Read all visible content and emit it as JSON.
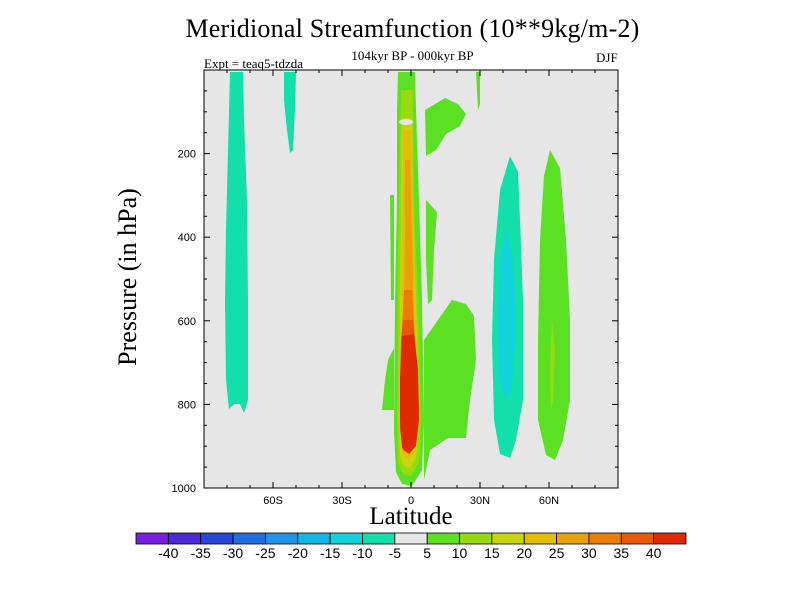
{
  "chart_data": {
    "type": "heatmap",
    "subtype": "filled-contour",
    "title": "Meridional Streamfunction (10**9kg/m-2)",
    "subtitle": "104kyr BP - 000kyr BP",
    "experiment": "Expt = teaq5-tdzda",
    "season": "DJF",
    "xlabel": "Latitude",
    "ylabel": "Pressure (in hPa)",
    "xlim": [
      -90,
      90
    ],
    "ylim": [
      1000,
      0
    ],
    "x_ticks": [
      {
        "value": -60,
        "label": "60S"
      },
      {
        "value": -30,
        "label": "30S"
      },
      {
        "value": 0,
        "label": "0"
      },
      {
        "value": 30,
        "label": "30N"
      },
      {
        "value": 60,
        "label": "60N"
      }
    ],
    "y_ticks": [
      {
        "value": 200,
        "label": "200"
      },
      {
        "value": 400,
        "label": "400"
      },
      {
        "value": 600,
        "label": "600"
      },
      {
        "value": 800,
        "label": "800"
      },
      {
        "value": 1000,
        "label": "1000"
      }
    ],
    "background_color": "#e6e6e6",
    "colorbar": {
      "levels": [
        "-40",
        "-35",
        "-30",
        "-25",
        "-20",
        "-15",
        "-10",
        "-5",
        "5",
        "10",
        "15",
        "20",
        "25",
        "30",
        "35",
        "40"
      ],
      "colors": [
        "#7a1fe0",
        "#4b2ad6",
        "#2946d8",
        "#1f6ee0",
        "#1f94e6",
        "#14b6e6",
        "#12d4d8",
        "#12e0a8",
        "#e6e6e6",
        "#5ce024",
        "#98da10",
        "#c8d40c",
        "#e2be08",
        "#eaa008",
        "#ec7e08",
        "#e85808",
        "#e02a04"
      ]
    },
    "regions": [
      {
        "value": -12,
        "lat": [
          -80,
          -73
        ],
        "p": [
          0,
          820
        ],
        "note": "southern high-latitude negative cell"
      },
      {
        "value": -12,
        "lat": [
          -56,
          -51
        ],
        "p": [
          0,
          190
        ],
        "note": "upper southern negative cell"
      },
      {
        "value": -15,
        "lat": [
          38,
          53
        ],
        "p": [
          200,
          930
        ],
        "note": "northern mid-latitude negative cell"
      },
      {
        "value": 25,
        "lat": [
          -6,
          4
        ],
        "p": [
          50,
          990
        ],
        "note": "equatorial positive column"
      },
      {
        "value": 40,
        "lat": [
          -4,
          3
        ],
        "p": [
          620,
          970
        ],
        "note": "lower equatorial positive core"
      },
      {
        "value": 8,
        "lat": [
          58,
          70
        ],
        "p": [
          200,
          960
        ],
        "note": "northern high-latitude positive cell"
      },
      {
        "value": 8,
        "lat": [
          4,
          30
        ],
        "p": [
          520,
          980
        ],
        "note": "northern subtropical positive cell"
      },
      {
        "value": 8,
        "lat": [
          5,
          24
        ],
        "p": [
          60,
          180
        ],
        "note": "upper northern positive cell"
      }
    ]
  }
}
